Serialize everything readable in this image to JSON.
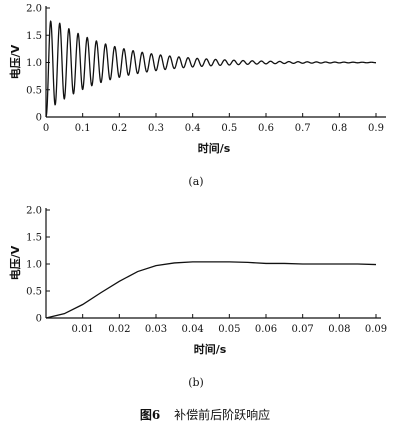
{
  "caption": {
    "fig_no": "图6",
    "title": "补偿前后阶跃响应"
  },
  "chart_data": [
    {
      "type": "line",
      "panel_label": "(a)",
      "xlabel": "时间/s",
      "ylabel": "电压/V",
      "xlim": [
        0,
        0.9
      ],
      "ylim": [
        0,
        2.0
      ],
      "xticks": [
        "0",
        "0.1",
        "0.2",
        "0.3",
        "0.4",
        "0.5",
        "0.6",
        "0.7",
        "0.8",
        "0.9"
      ],
      "yticks": [
        "0",
        "0.5",
        "1.0",
        "1.5",
        "2.0"
      ],
      "series": [
        {
          "model": "damped_oscillation",
          "final_value": 1.0,
          "initial_overshoot": 0.9,
          "decay_rate": 6.0,
          "frequency_hz": 40,
          "start_value": 0
        }
      ]
    },
    {
      "type": "line",
      "panel_label": "(b)",
      "xlabel": "时间/s",
      "ylabel": "电压/V",
      "xlim": [
        0,
        0.09
      ],
      "ylim": [
        0,
        2.0
      ],
      "xticks": [
        "0.01",
        "0.02",
        "0.03",
        "0.04",
        "0.05",
        "0.06",
        "0.07",
        "0.08",
        "0.09"
      ],
      "yticks": [
        "0",
        "0.5",
        "1.0",
        "1.5",
        "2.0"
      ],
      "series": [
        {
          "points": [
            [
              0,
              0
            ],
            [
              0.005,
              0.08
            ],
            [
              0.01,
              0.25
            ],
            [
              0.015,
              0.47
            ],
            [
              0.02,
              0.68
            ],
            [
              0.025,
              0.86
            ],
            [
              0.03,
              0.97
            ],
            [
              0.035,
              1.02
            ],
            [
              0.04,
              1.04
            ],
            [
              0.045,
              1.04
            ],
            [
              0.05,
              1.04
            ],
            [
              0.055,
              1.03
            ],
            [
              0.06,
              1.01
            ],
            [
              0.065,
              1.01
            ],
            [
              0.07,
              1.0
            ],
            [
              0.075,
              1.0
            ],
            [
              0.08,
              1.0
            ],
            [
              0.085,
              1.0
            ],
            [
              0.09,
              0.99
            ]
          ]
        }
      ]
    }
  ]
}
